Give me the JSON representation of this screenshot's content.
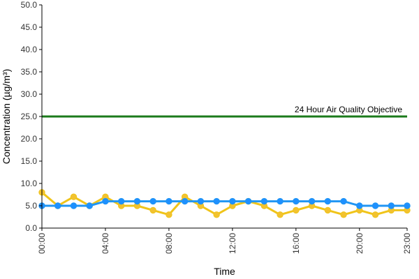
{
  "chart_data": {
    "type": "line",
    "xlabel": "Time",
    "ylabel": "Concentration (µg/m³)",
    "ylim": [
      0,
      50
    ],
    "y_ticks": [
      "0.0",
      "5.0",
      "10.0",
      "15.0",
      "20.0",
      "25.0",
      "30.0",
      "35.0",
      "40.0",
      "45.0",
      "50.0"
    ],
    "x_tick_labels": [
      "00:00",
      "04:00",
      "08:00",
      "12:00",
      "16:00",
      "20:00",
      "23:00"
    ],
    "x_tick_hours": [
      0,
      4,
      8,
      12,
      16,
      20,
      23
    ],
    "x": [
      0,
      1,
      2,
      3,
      4,
      5,
      6,
      7,
      8,
      9,
      10,
      11,
      12,
      13,
      14,
      15,
      16,
      17,
      18,
      19,
      20,
      21,
      22,
      23
    ],
    "grid": false,
    "legend": "none",
    "series": [
      {
        "color": "#f0c419",
        "marker_fill": "#f2c230",
        "values": [
          8,
          5,
          7,
          5,
          7,
          5,
          5,
          4,
          3,
          7,
          5,
          3,
          5,
          6,
          5,
          3,
          4,
          5,
          4,
          3,
          4,
          3,
          4,
          4
        ]
      },
      {
        "color": "#2196f3",
        "marker_fill": "#1e90ff",
        "values": [
          5,
          5,
          5,
          5,
          6,
          6,
          6,
          6,
          6,
          6,
          6,
          6,
          6,
          6,
          6,
          6,
          6,
          6,
          6,
          6,
          5,
          5,
          5,
          5
        ]
      }
    ],
    "reference_line": {
      "label": "24 Hour Air Quality Objective",
      "value": 25,
      "color": "#1b7a1b"
    }
  }
}
